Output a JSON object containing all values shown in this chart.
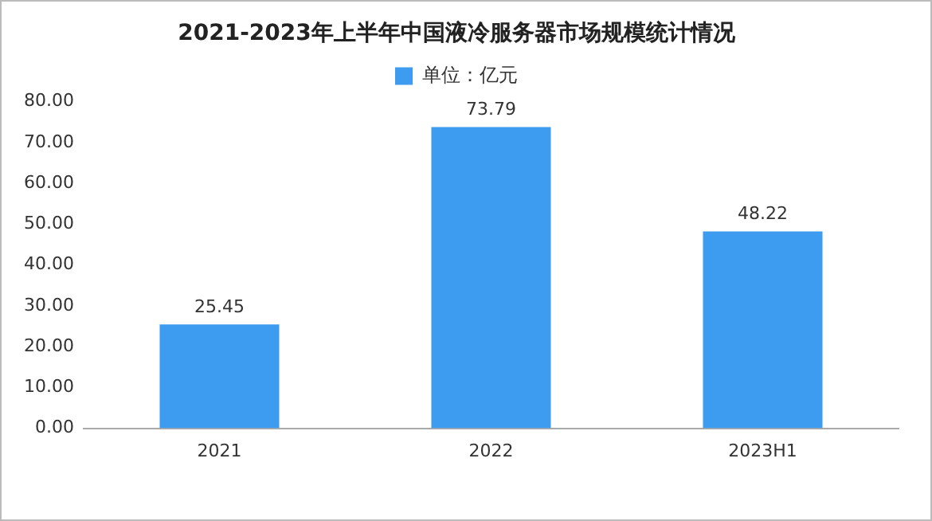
{
  "chart_data": {
    "type": "bar",
    "title": "2021-2023年上半年中国液冷服务器市场规模统计情况",
    "categories": [
      "2021",
      "2022",
      "2023H1"
    ],
    "series": [
      {
        "name": "单位：亿元",
        "color": "#3d9cf0",
        "values": [
          25.45,
          73.79,
          48.22
        ]
      }
    ],
    "ylim": [
      0,
      80
    ],
    "yticks": [
      {
        "value": 0,
        "label": "0.00"
      },
      {
        "value": 10,
        "label": "10.00"
      },
      {
        "value": 20,
        "label": "20.00"
      },
      {
        "value": 30,
        "label": "30.00"
      },
      {
        "value": 40,
        "label": "40.00"
      },
      {
        "value": 50,
        "label": "50.00"
      },
      {
        "value": 60,
        "label": "60.00"
      },
      {
        "value": 70,
        "label": "70.00"
      },
      {
        "value": 80,
        "label": "80.00"
      }
    ],
    "grid": false,
    "legend": "top",
    "data_labels": true
  }
}
